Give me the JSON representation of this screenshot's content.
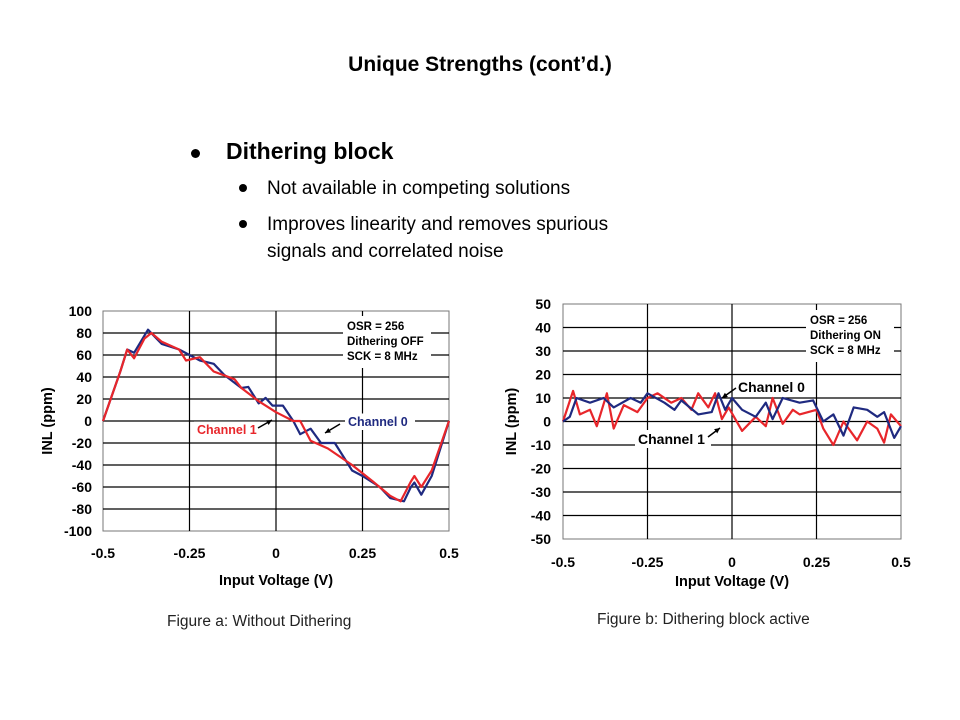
{
  "slide": {
    "title": "Unique Strengths (cont’d.)",
    "bullet": "Dithering block",
    "sub_bullets": [
      "Not available in competing solutions",
      "Improves linearity and removes spurious",
      "signals and correlated noise"
    ],
    "captions": [
      "Figure a: Without Dithering",
      "Figure b: Dithering block active"
    ]
  },
  "colors": {
    "channel0": "#1f2a80",
    "channel1": "#e8262b",
    "grid": "#000000"
  },
  "chart_data": [
    {
      "type": "line",
      "title": "Figure a: Without Dithering",
      "xlabel": "Input Voltage (V)",
      "ylabel": "INL (ppm)",
      "xlim": [
        -0.5,
        0.5
      ],
      "ylim": [
        -100,
        100
      ],
      "xticks": [
        "-0.5",
        "-0.25",
        "0",
        "0.25",
        "0.5"
      ],
      "yticks": [
        "100",
        "80",
        "60",
        "40",
        "20",
        "0",
        "-20",
        "-40",
        "-60",
        "-80",
        "-100"
      ],
      "grid": true,
      "annotation": [
        "OSR = 256",
        "Dithering OFF",
        "SCK = 8 MHz"
      ],
      "series": [
        {
          "name": "Channel 0",
          "color": "#1f2a80",
          "x": [
            -0.5,
            -0.45,
            -0.43,
            -0.41,
            -0.37,
            -0.33,
            -0.28,
            -0.22,
            -0.18,
            -0.15,
            -0.1,
            -0.08,
            -0.05,
            -0.03,
            -0.01,
            0.02,
            0.05,
            0.07,
            0.1,
            0.13,
            0.17,
            0.2,
            0.22,
            0.25,
            0.3,
            0.33,
            0.37,
            0.39,
            0.4,
            0.42,
            0.45,
            0.5
          ],
          "y": [
            0,
            45,
            65,
            62,
            83,
            70,
            65,
            55,
            52,
            42,
            30,
            31,
            16,
            21,
            14,
            14,
            0,
            -12,
            -7,
            -20,
            -20,
            -35,
            -45,
            -50,
            -60,
            -70,
            -73,
            -60,
            -56,
            -67,
            -50,
            0
          ]
        },
        {
          "name": "Channel 1",
          "color": "#e8262b",
          "x": [
            -0.5,
            -0.45,
            -0.43,
            -0.41,
            -0.38,
            -0.36,
            -0.33,
            -0.28,
            -0.26,
            -0.22,
            -0.18,
            -0.12,
            -0.1,
            -0.05,
            0,
            0.05,
            0.07,
            0.1,
            0.15,
            0.22,
            0.28,
            0.33,
            0.36,
            0.39,
            0.4,
            0.42,
            0.45,
            0.5
          ],
          "y": [
            0,
            45,
            65,
            57,
            75,
            80,
            72,
            65,
            55,
            58,
            45,
            38,
            30,
            18,
            8,
            0,
            0,
            -18,
            -25,
            -40,
            -55,
            -68,
            -73,
            -55,
            -50,
            -60,
            -45,
            0
          ]
        }
      ]
    },
    {
      "type": "line",
      "title": "Figure b: Dithering block active",
      "xlabel": "Input Voltage (V)",
      "ylabel": "INL (ppm)",
      "xlim": [
        -0.5,
        0.5
      ],
      "ylim": [
        -50,
        50
      ],
      "xticks": [
        "-0.5",
        "-0.25",
        "0",
        "0.25",
        "0.5"
      ],
      "yticks": [
        "50",
        "40",
        "30",
        "20",
        "10",
        "0",
        "-10",
        "-20",
        "-30",
        "-40",
        "-50"
      ],
      "grid": true,
      "annotation": [
        "OSR = 256",
        "Dithering ON",
        "SCK = 8 MHz"
      ],
      "series": [
        {
          "name": "Channel 0",
          "color": "#1f2a80",
          "x": [
            -0.5,
            -0.48,
            -0.46,
            -0.42,
            -0.38,
            -0.35,
            -0.3,
            -0.27,
            -0.25,
            -0.2,
            -0.17,
            -0.15,
            -0.1,
            -0.06,
            -0.04,
            -0.02,
            0,
            0.03,
            0.07,
            0.1,
            0.12,
            0.15,
            0.2,
            0.24,
            0.27,
            0.3,
            0.33,
            0.36,
            0.4,
            0.43,
            0.45,
            0.48,
            0.5
          ],
          "y": [
            0,
            2,
            10,
            8,
            10,
            6,
            10,
            8,
            12,
            8,
            5,
            9,
            3,
            4,
            12,
            5,
            10,
            5,
            2,
            8,
            1,
            10,
            8,
            9,
            0,
            3,
            -6,
            6,
            5,
            2,
            4,
            -7,
            -2
          ]
        },
        {
          "name": "Channel 1",
          "color": "#e8262b",
          "x": [
            -0.5,
            -0.47,
            -0.45,
            -0.42,
            -0.4,
            -0.37,
            -0.35,
            -0.32,
            -0.28,
            -0.25,
            -0.22,
            -0.18,
            -0.15,
            -0.12,
            -0.1,
            -0.07,
            -0.05,
            -0.03,
            -0.01,
            0.03,
            0.07,
            0.1,
            0.12,
            0.15,
            0.18,
            0.2,
            0.25,
            0.27,
            0.3,
            0.33,
            0.37,
            0.4,
            0.43,
            0.45,
            0.47,
            0.5
          ],
          "y": [
            0,
            13,
            3,
            5,
            -2,
            12,
            -3,
            7,
            4,
            10,
            12,
            8,
            10,
            5,
            12,
            6,
            12,
            1,
            6,
            -4,
            2,
            -2,
            10,
            -1,
            5,
            3,
            5,
            -3,
            -10,
            0,
            -8,
            0,
            -3,
            -9,
            3,
            -2
          ]
        }
      ]
    }
  ]
}
